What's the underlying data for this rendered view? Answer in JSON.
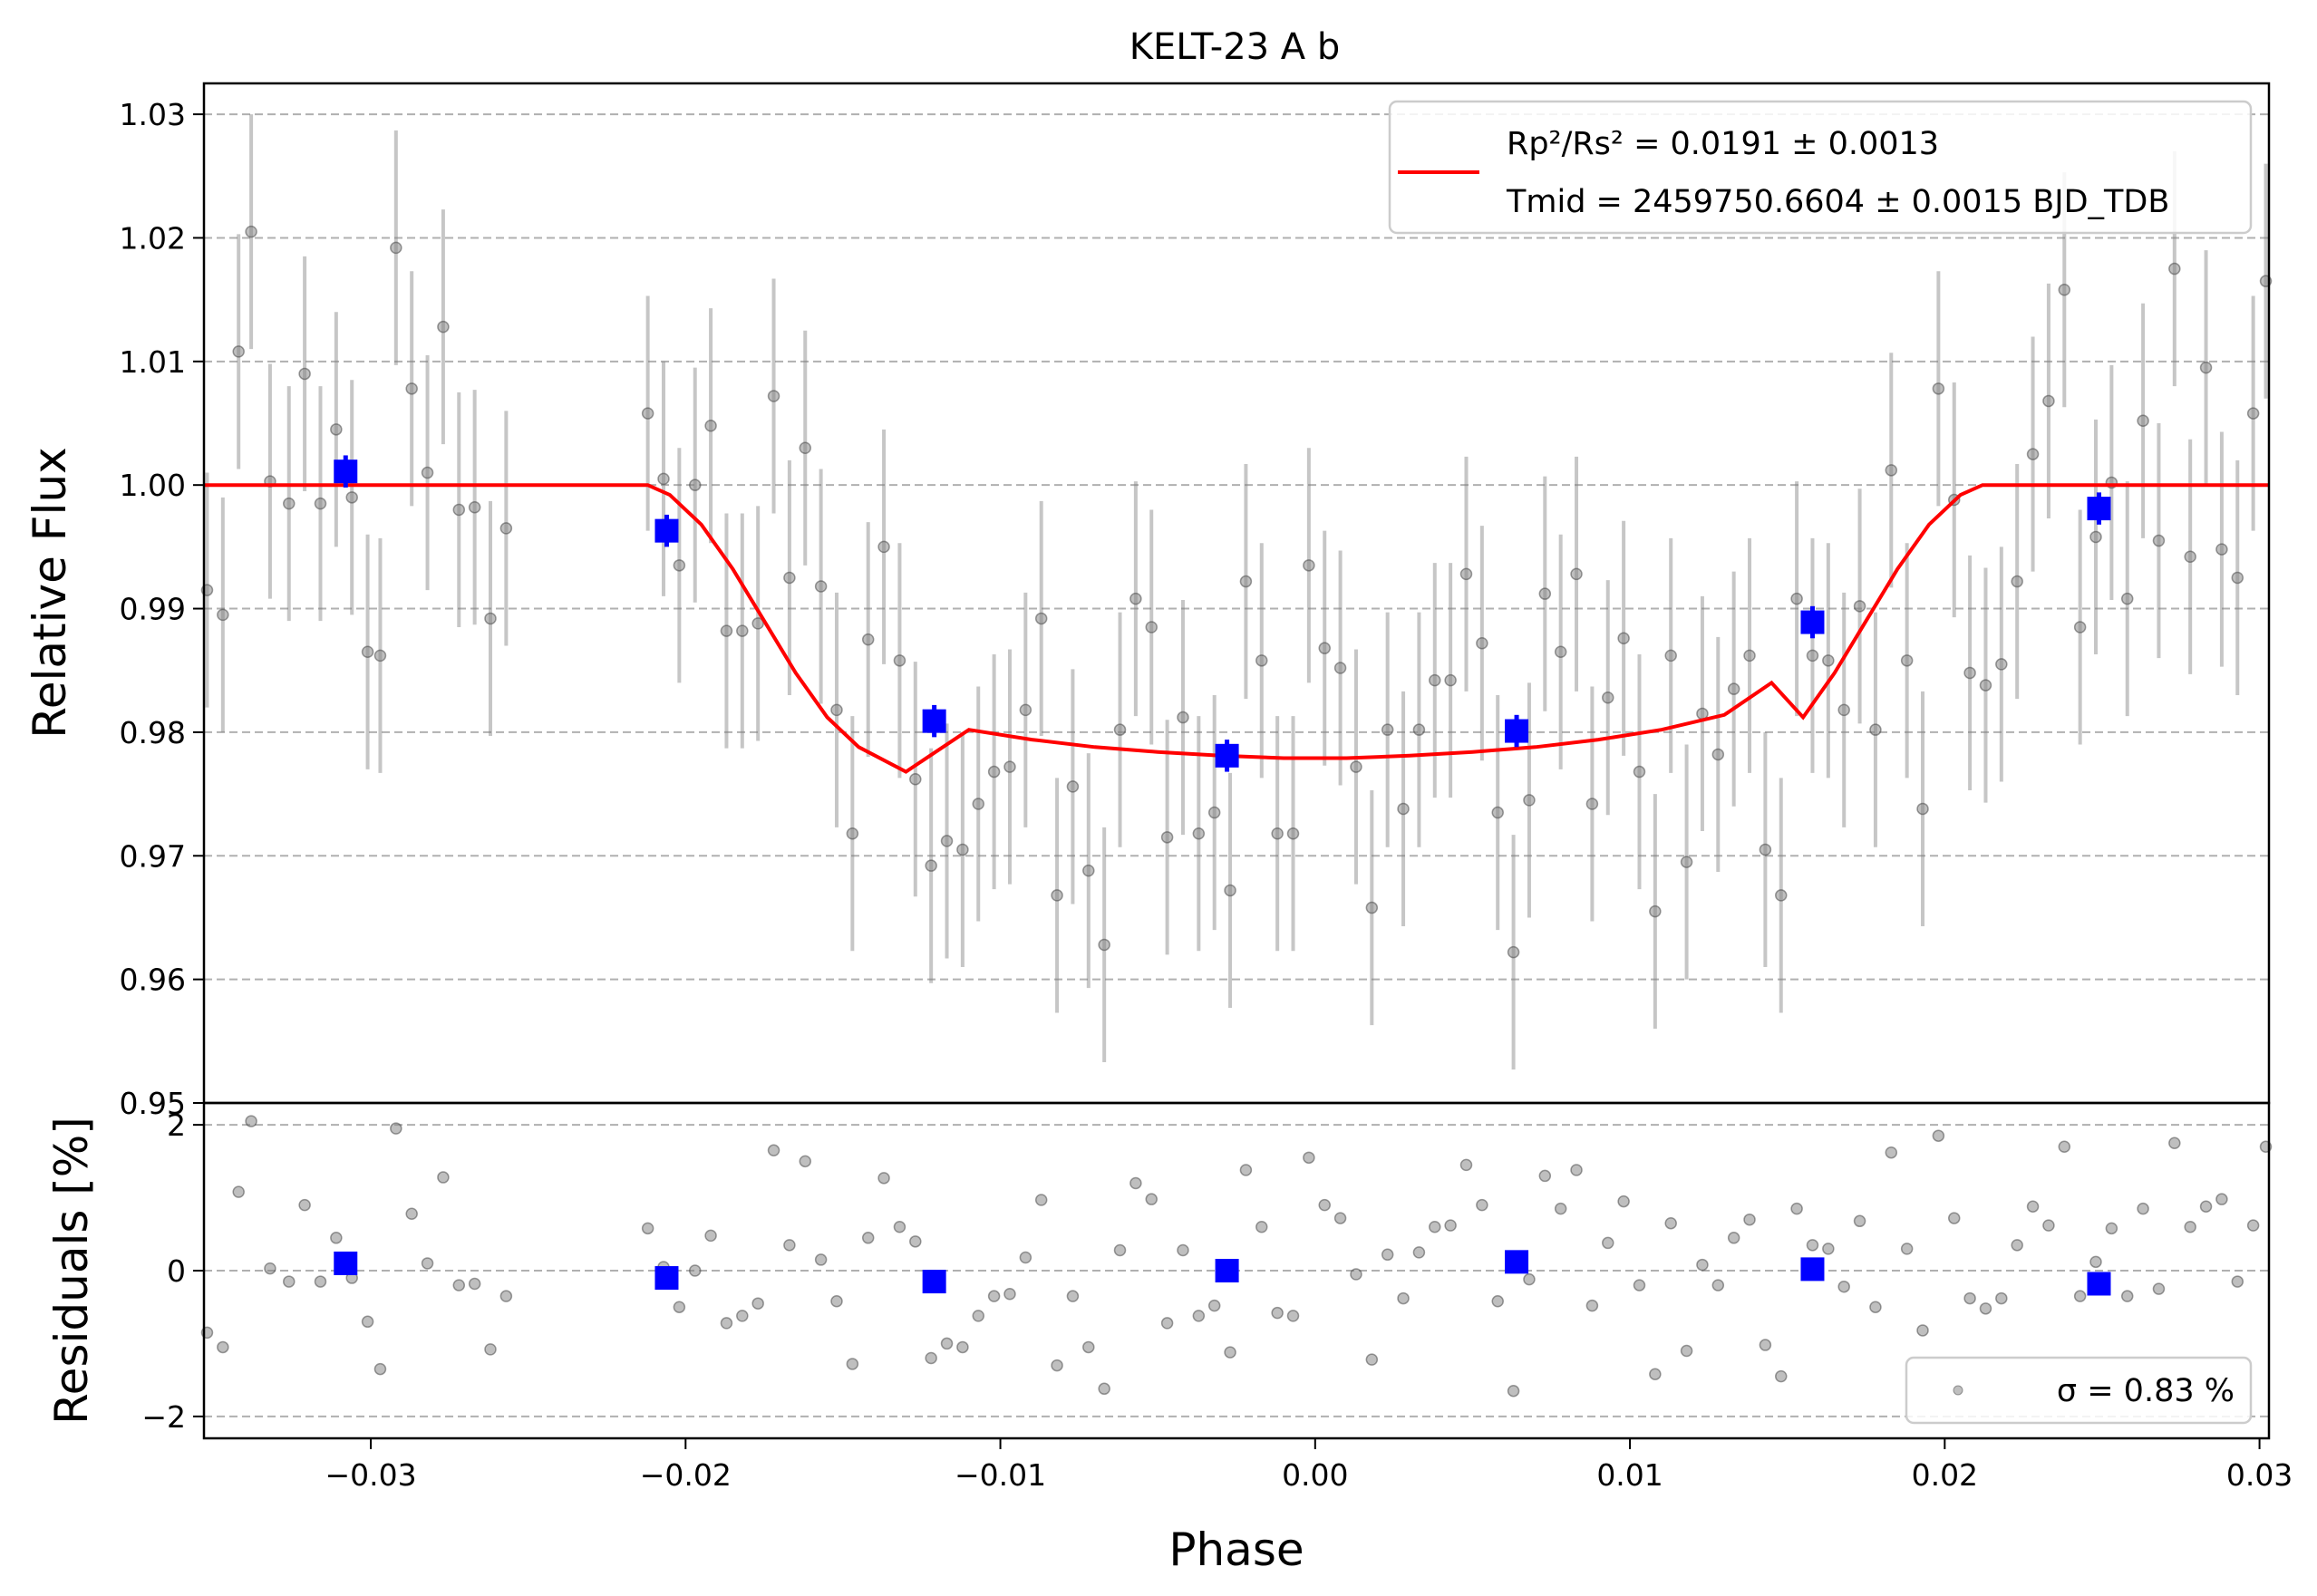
{
  "chart_data": [
    {
      "type": "scatter",
      "title": "KELT-23 A b",
      "xlabel": "",
      "ylabel": "Relative Flux",
      "xlim": [
        -0.0353,
        0.0303
      ],
      "ylim": [
        0.95,
        1.0325
      ],
      "xticks": [
        "-0.03",
        "-0.02",
        "-0.01",
        "0.00",
        "0.01",
        "0.02",
        "0.03"
      ],
      "yticks": [
        "0.95",
        "0.96",
        "0.97",
        "0.98",
        "0.99",
        "1.00",
        "1.01",
        "1.02",
        "1.03"
      ],
      "grid": "horizontal dashed",
      "legend": {
        "placement": "top-right",
        "line1": "Rp²/Rs² = 0.0191 ± 0.0013",
        "line2": "Tmid = 2459750.6604 ± 0.0015 BJD_TDB"
      },
      "model": {
        "name": "transit model",
        "color": "#ff0000",
        "x": [
          -0.0353,
          -0.0212,
          -0.0205,
          -0.0195,
          -0.0185,
          -0.0175,
          -0.0165,
          -0.0155,
          -0.0145,
          -0.013,
          -0.011,
          -0.009,
          -0.007,
          -0.005,
          -0.003,
          -0.001,
          0.0,
          0.001,
          0.003,
          0.005,
          0.007,
          0.009,
          0.011,
          0.013,
          0.0145,
          0.0155,
          0.0165,
          0.0175,
          0.0185,
          0.0195,
          0.0205,
          0.0212,
          0.0303
        ],
        "y": [
          1.0,
          1.0,
          0.9992,
          0.9968,
          0.9932,
          0.989,
          0.9848,
          0.9812,
          0.9788,
          0.9768,
          0.9802,
          0.9794,
          0.9788,
          0.9784,
          0.9781,
          0.9779,
          0.9779,
          0.9779,
          0.9781,
          0.9784,
          0.9788,
          0.9794,
          0.9802,
          0.9814,
          0.984,
          0.9812,
          0.9848,
          0.989,
          0.9932,
          0.9968,
          0.9992,
          1.0,
          1.0
        ]
      },
      "binned": {
        "name": "binned data",
        "color": "#0000ff",
        "x": [
          -0.0308,
          -0.0206,
          -0.0121,
          -0.0028,
          0.0064,
          0.0158,
          0.0249
        ],
        "y": [
          1.0011,
          0.9963,
          0.9809,
          0.9781,
          0.9801,
          0.9889,
          0.9981
        ],
        "err": [
          0.0013,
          0.0013,
          0.0013,
          0.0013,
          0.0013,
          0.0013,
          0.0013
        ]
      },
      "raw": {
        "name": "unbinned data",
        "color": "#808080",
        "err": 0.0095,
        "x": [
          -0.0352,
          -0.0347,
          -0.0342,
          -0.0338,
          -0.0332,
          -0.0326,
          -0.0321,
          -0.0316,
          -0.0311,
          -0.0306,
          -0.0301,
          -0.0297,
          -0.0292,
          -0.0287,
          -0.0282,
          -0.0277,
          -0.0272,
          -0.0267,
          -0.0262,
          -0.0257,
          -0.0212,
          -0.0207,
          -0.0202,
          -0.0197,
          -0.0192,
          -0.0187,
          -0.0182,
          -0.0177,
          -0.0172,
          -0.0167,
          -0.0162,
          -0.0157,
          -0.0152,
          -0.0147,
          -0.0142,
          -0.0137,
          -0.0132,
          -0.0127,
          -0.0122,
          -0.0117,
          -0.0112,
          -0.0107,
          -0.0102,
          -0.0097,
          -0.0092,
          -0.0087,
          -0.0082,
          -0.0077,
          -0.0072,
          -0.0067,
          -0.0062,
          -0.0057,
          -0.0052,
          -0.0047,
          -0.0042,
          -0.0037,
          -0.0032,
          -0.0027,
          -0.0022,
          -0.0017,
          -0.0012,
          -0.0007,
          -0.0002,
          0.0003,
          0.0008,
          0.0013,
          0.0018,
          0.0023,
          0.0028,
          0.0033,
          0.0038,
          0.0043,
          0.0048,
          0.0053,
          0.0058,
          0.0063,
          0.0068,
          0.0073,
          0.0078,
          0.0083,
          0.0088,
          0.0093,
          0.0098,
          0.0103,
          0.0108,
          0.0113,
          0.0118,
          0.0123,
          0.0128,
          0.0133,
          0.0138,
          0.0143,
          0.0148,
          0.0153,
          0.0158,
          0.0163,
          0.0168,
          0.0173,
          0.0178,
          0.0183,
          0.0188,
          0.0193,
          0.0198,
          0.0203,
          0.0208,
          0.0213,
          0.0218,
          0.0223,
          0.0228,
          0.0233,
          0.0238,
          0.0243,
          0.0248,
          0.0253,
          0.0258,
          0.0263,
          0.0268,
          0.0273,
          0.0278,
          0.0283,
          0.0288,
          0.0293,
          0.0298,
          0.0302
        ],
        "y": [
          0.9915,
          0.9895,
          1.0108,
          1.0205,
          1.0003,
          0.9985,
          1.009,
          0.9985,
          1.0045,
          0.999,
          0.9865,
          0.9862,
          1.0192,
          1.0078,
          1.001,
          1.0128,
          0.998,
          0.9982,
          0.9892,
          0.9965,
          1.0058,
          1.0005,
          0.9935,
          1.0,
          1.0048,
          0.9882,
          0.9882,
          0.9888,
          1.0072,
          0.9925,
          1.003,
          0.9918,
          0.9818,
          0.9718,
          0.9875,
          0.995,
          0.9858,
          0.9762,
          0.9692,
          0.9712,
          0.9705,
          0.9742,
          0.9768,
          0.9772,
          0.9818,
          0.9892,
          0.9668,
          0.9756,
          0.9688,
          0.9628,
          0.9802,
          0.9908,
          0.9885,
          0.9715,
          0.9812,
          0.9718,
          0.9735,
          0.9672,
          0.9922,
          0.9858,
          0.9718,
          0.9718,
          0.9935,
          0.9868,
          0.9852,
          0.9772,
          0.9658,
          0.9802,
          0.9738,
          0.9802,
          0.9842,
          0.9842,
          0.9928,
          0.9872,
          0.9735,
          0.9622,
          0.9745,
          0.9912,
          0.9865,
          0.9928,
          0.9742,
          0.9828,
          0.9876,
          0.9768,
          0.9655,
          0.9862,
          0.9695,
          0.9815,
          0.9782,
          0.9835,
          0.9862,
          0.9705,
          0.9668,
          0.9908,
          0.9862,
          0.9858,
          0.9818,
          0.9902,
          0.9802,
          1.0012,
          0.9858,
          0.9738,
          1.0078,
          0.9988,
          0.9848,
          0.9838,
          0.9855,
          0.9922,
          1.0025,
          1.0068,
          1.0158,
          0.9885,
          0.9958,
          1.0002,
          0.9908,
          1.0052,
          0.9955,
          1.0175,
          0.9942,
          1.0095,
          0.9948,
          0.9925,
          1.0058,
          1.0165
        ]
      }
    },
    {
      "type": "scatter",
      "title": "",
      "xlabel": "Phase",
      "ylabel": "Residuals [%]",
      "xlim": [
        -0.0353,
        0.0303
      ],
      "ylim": [
        -2.3,
        2.3
      ],
      "xticks": [
        "-0.03",
        "-0.02",
        "-0.01",
        "0.00",
        "0.01",
        "0.02",
        "0.03"
      ],
      "yticks": [
        "-2",
        "0",
        "2"
      ],
      "grid": "horizontal dashed",
      "legend": {
        "placement": "bottom-right",
        "text": "σ = 0.83 %"
      },
      "binned": {
        "name": "binned residuals",
        "color": "#0000ff",
        "x": [
          -0.0308,
          -0.0206,
          -0.0121,
          -0.0028,
          0.0064,
          0.0158,
          0.0249
        ],
        "y": [
          0.1,
          -0.1,
          -0.15,
          0.0,
          0.12,
          0.02,
          -0.18
        ]
      },
      "raw": {
        "name": "residuals",
        "color": "#808080",
        "x": [
          -0.0352,
          -0.0347,
          -0.0342,
          -0.0338,
          -0.0332,
          -0.0326,
          -0.0321,
          -0.0316,
          -0.0311,
          -0.0306,
          -0.0301,
          -0.0297,
          -0.0292,
          -0.0287,
          -0.0282,
          -0.0277,
          -0.0272,
          -0.0267,
          -0.0262,
          -0.0257,
          -0.0212,
          -0.0207,
          -0.0202,
          -0.0197,
          -0.0192,
          -0.0187,
          -0.0182,
          -0.0177,
          -0.0172,
          -0.0167,
          -0.0162,
          -0.0157,
          -0.0152,
          -0.0147,
          -0.0142,
          -0.0137,
          -0.0132,
          -0.0127,
          -0.0122,
          -0.0117,
          -0.0112,
          -0.0107,
          -0.0102,
          -0.0097,
          -0.0092,
          -0.0087,
          -0.0082,
          -0.0077,
          -0.0072,
          -0.0067,
          -0.0062,
          -0.0057,
          -0.0052,
          -0.0047,
          -0.0042,
          -0.0037,
          -0.0032,
          -0.0027,
          -0.0022,
          -0.0017,
          -0.0012,
          -0.0007,
          -0.0002,
          0.0003,
          0.0008,
          0.0013,
          0.0018,
          0.0023,
          0.0028,
          0.0033,
          0.0038,
          0.0043,
          0.0048,
          0.0053,
          0.0058,
          0.0063,
          0.0068,
          0.0073,
          0.0078,
          0.0083,
          0.0088,
          0.0093,
          0.0098,
          0.0103,
          0.0108,
          0.0113,
          0.0118,
          0.0123,
          0.0128,
          0.0133,
          0.0138,
          0.0143,
          0.0148,
          0.0153,
          0.0158,
          0.0163,
          0.0168,
          0.0173,
          0.0178,
          0.0183,
          0.0188,
          0.0193,
          0.0198,
          0.0203,
          0.0208,
          0.0213,
          0.0218,
          0.0223,
          0.0228,
          0.0233,
          0.0238,
          0.0243,
          0.0248,
          0.0253,
          0.0258,
          0.0263,
          0.0268,
          0.0273,
          0.0278,
          0.0283,
          0.0288,
          0.0293,
          0.0298,
          0.0302
        ],
        "y": [
          -0.85,
          -1.05,
          1.08,
          2.05,
          0.03,
          -0.15,
          0.9,
          -0.15,
          0.45,
          -0.1,
          -0.7,
          -1.35,
          1.95,
          0.78,
          0.1,
          1.28,
          -0.2,
          -0.18,
          -1.08,
          -0.35,
          0.58,
          0.05,
          -0.5,
          0.0,
          0.48,
          -0.72,
          -0.62,
          -0.45,
          1.65,
          0.35,
          1.5,
          0.15,
          -0.42,
          -1.28,
          0.45,
          1.27,
          0.6,
          0.4,
          -1.2,
          -1.0,
          -1.05,
          -0.62,
          -0.35,
          -0.32,
          0.18,
          0.97,
          -1.3,
          -0.35,
          -1.05,
          -1.62,
          0.28,
          1.2,
          0.98,
          -0.72,
          0.28,
          -0.62,
          -0.48,
          -1.12,
          1.38,
          0.6,
          -0.58,
          -0.62,
          1.55,
          0.9,
          0.72,
          -0.05,
          -1.22,
          0.22,
          -0.38,
          0.25,
          0.6,
          0.62,
          1.45,
          0.9,
          -0.42,
          -1.65,
          -0.12,
          1.3,
          0.85,
          1.38,
          -0.48,
          0.38,
          0.95,
          -0.2,
          -1.42,
          0.65,
          -1.1,
          0.08,
          -0.2,
          0.45,
          0.7,
          -1.02,
          -1.45,
          0.85,
          0.35,
          0.3,
          -0.22,
          0.68,
          -0.5,
          1.62,
          0.3,
          -0.82,
          1.85,
          0.72,
          -0.38,
          -0.52,
          -0.38,
          0.35,
          0.88,
          0.62,
          1.7,
          -0.35,
          0.12,
          0.58,
          -0.35,
          0.85,
          -0.25,
          1.75,
          0.6,
          0.88,
          0.98,
          -0.15,
          0.62,
          1.7
        ]
      }
    }
  ]
}
